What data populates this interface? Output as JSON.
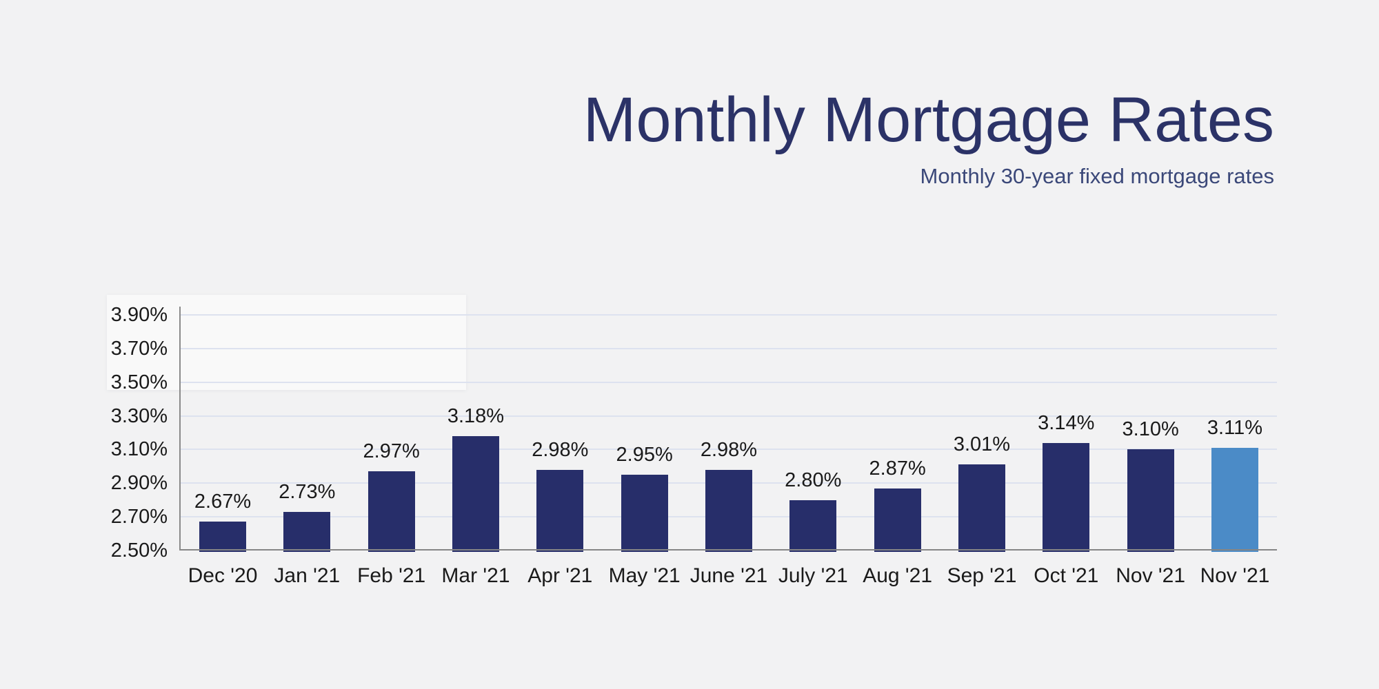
{
  "page": {
    "background_color": "#f2f2f3"
  },
  "header": {
    "title": "Monthly Mortgage Rates",
    "subtitle": "Monthly 30-year fixed mortgage rates",
    "title_color": "#2b3267",
    "subtitle_color": "#3b4879"
  },
  "chart_data": {
    "type": "bar",
    "title": "Monthly Mortgage Rates",
    "subtitle": "Monthly 30-year fixed mortgage rates",
    "categories": [
      "Dec '20",
      "Jan '21",
      "Feb '21",
      "Mar '21",
      "Apr '21",
      "May '21",
      "June '21",
      "July '21",
      "Aug '21",
      "Sep '21",
      "Oct '21",
      "Nov '21",
      "Nov '21"
    ],
    "values": [
      2.67,
      2.73,
      2.97,
      3.18,
      2.98,
      2.95,
      2.98,
      2.8,
      2.87,
      3.01,
      3.14,
      3.1,
      3.11
    ],
    "value_labels": [
      "2.67%",
      "2.73%",
      "2.97%",
      "3.18%",
      "2.98%",
      "2.95%",
      "2.98%",
      "2.80%",
      "2.87%",
      "3.01%",
      "3.14%",
      "3.10%",
      "3.11%"
    ],
    "highlight_index": 12,
    "y_ticks": [
      {
        "label": "3.90%",
        "value": 3.9
      },
      {
        "label": "3.70%",
        "value": 3.7
      },
      {
        "label": "3.50%",
        "value": 3.5
      },
      {
        "label": "3.30%",
        "value": 3.3
      },
      {
        "label": "3.10%",
        "value": 3.1
      },
      {
        "label": "2.90%",
        "value": 2.9
      },
      {
        "label": "2.70%",
        "value": 2.7
      },
      {
        "label": "2.50%",
        "value": 2.5
      }
    ],
    "ylim": [
      2.5,
      3.9
    ],
    "xlabel": "",
    "ylabel": "",
    "grid": true,
    "legend": "none",
    "colors": {
      "bar": "#272e6a",
      "bar_highlight": "#4b8bc7",
      "gridline": "#dde2ef",
      "axis": "#858585",
      "label_text": "#1a1a1a"
    }
  }
}
